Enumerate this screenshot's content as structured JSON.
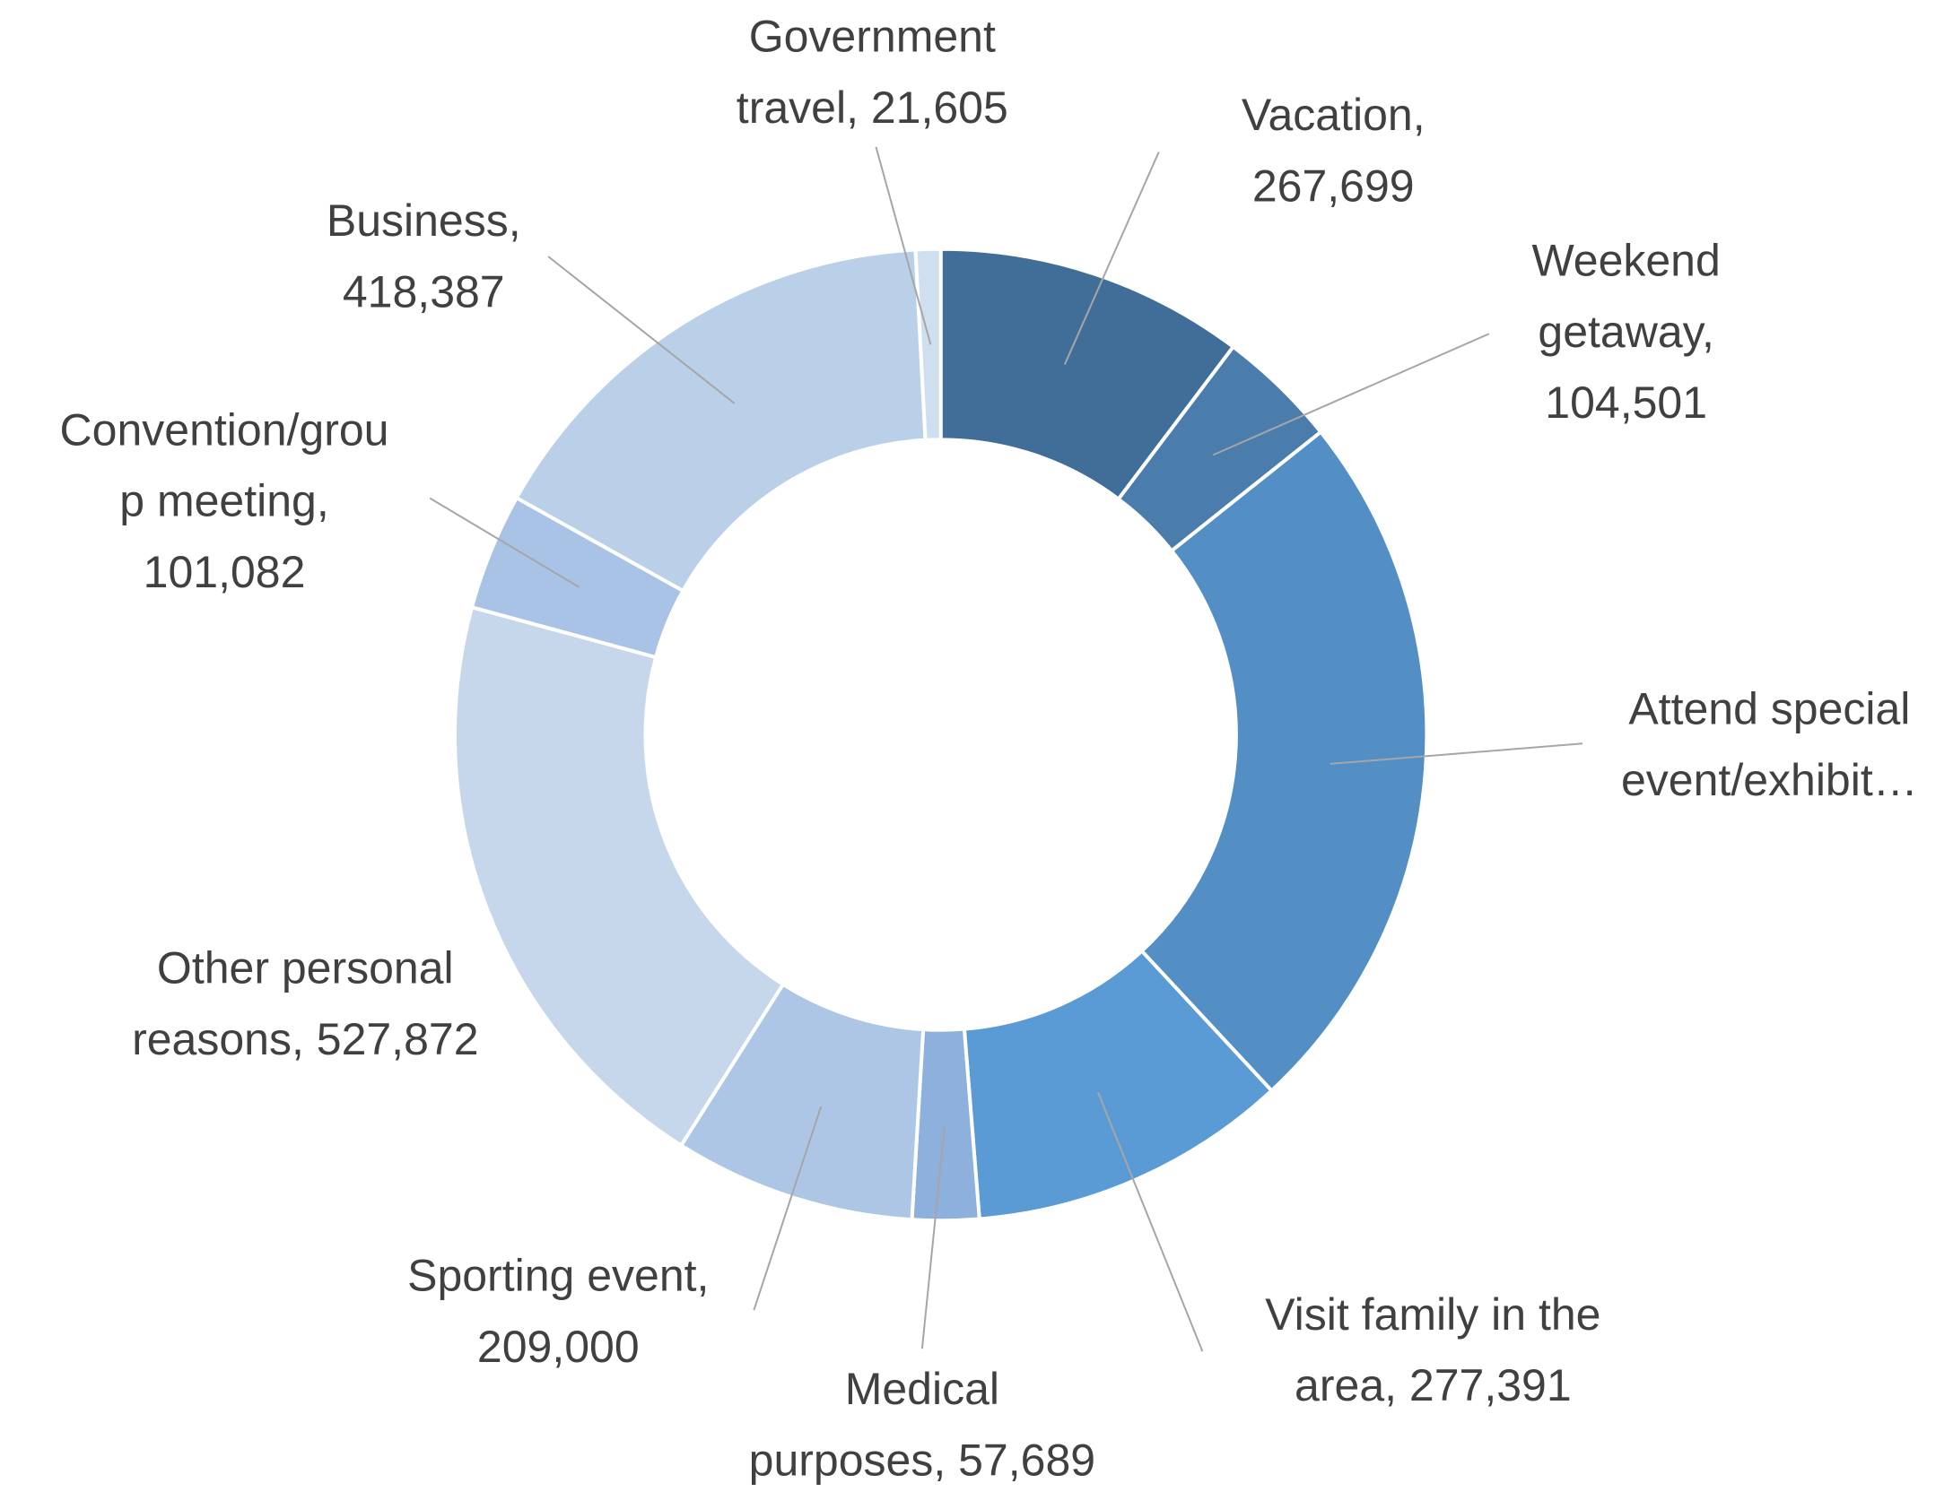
{
  "chart_data": {
    "type": "donut",
    "labels": [
      [
        "Vacation,",
        "267,699"
      ],
      [
        "Weekend",
        "getaway,",
        "104,501"
      ],
      [
        "Attend special",
        "event/exhibit…"
      ],
      [
        "Visit family in the",
        "area, 277,391"
      ],
      [
        "Medical",
        "purposes, 57,689"
      ],
      [
        "Sporting event,",
        "209,000"
      ],
      [
        "Other personal",
        "reasons, 527,872"
      ],
      [
        "Convention/grou",
        "p meeting,",
        "101,082"
      ],
      [
        "Business,",
        "418,387"
      ],
      [
        "Government",
        "travel, 21,605"
      ]
    ],
    "values": [
      267699,
      104501,
      620000,
      277391,
      57689,
      209000,
      527872,
      101082,
      418387,
      21605
    ],
    "colors": [
      "#416e98",
      "#4a7cac",
      "#538fc5",
      "#5b9bd5",
      "#8db0dd",
      "#adc6e6",
      "#c6d7ec",
      "#a9c3e6",
      "#bacfe8",
      "#d0dff0"
    ]
  }
}
